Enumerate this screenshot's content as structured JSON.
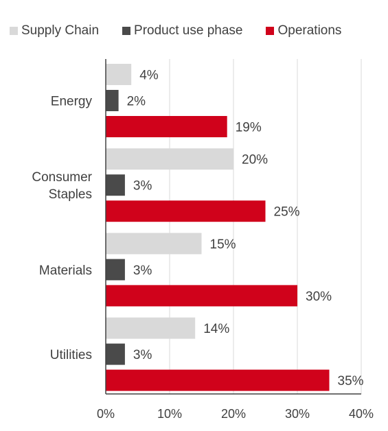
{
  "colors": {
    "supply_chain": "#d9d9d9",
    "product_use_phase": "#4a4a4a",
    "operations": "#d0021b",
    "grid": "#d9d9d9",
    "axis": "#404040",
    "text": "#404040"
  },
  "chart_data": {
    "type": "bar",
    "orientation": "horizontal",
    "title": "",
    "xlabel": "",
    "ylabel": "",
    "legend_position": "top",
    "grid": true,
    "xlim": [
      0,
      40
    ],
    "x_ticks": [
      "0%",
      "10%",
      "20%",
      "30%",
      "40%"
    ],
    "x_tick_values": [
      0,
      10,
      20,
      30,
      40
    ],
    "categories": [
      "Energy",
      "Consumer Staples",
      "Materials",
      "Utilities"
    ],
    "category_label_lines": [
      [
        "Energy"
      ],
      [
        "Consumer",
        "Staples"
      ],
      [
        "Materials"
      ],
      [
        "Utilities"
      ]
    ],
    "series": [
      {
        "name": "Supply Chain",
        "key": "supply_chain",
        "values": [
          4,
          20,
          15,
          14
        ],
        "labels": [
          "4%",
          "20%",
          "15%",
          "14%"
        ]
      },
      {
        "name": "Product use phase",
        "key": "product_use_phase",
        "values": [
          2,
          3,
          3,
          3
        ],
        "labels": [
          "2%",
          "3%",
          "3%",
          "3%"
        ]
      },
      {
        "name": "Operations",
        "key": "operations",
        "values": [
          19,
          25,
          30,
          35
        ],
        "labels": [
          "19%",
          "25%",
          "30%",
          "35%"
        ]
      }
    ]
  }
}
